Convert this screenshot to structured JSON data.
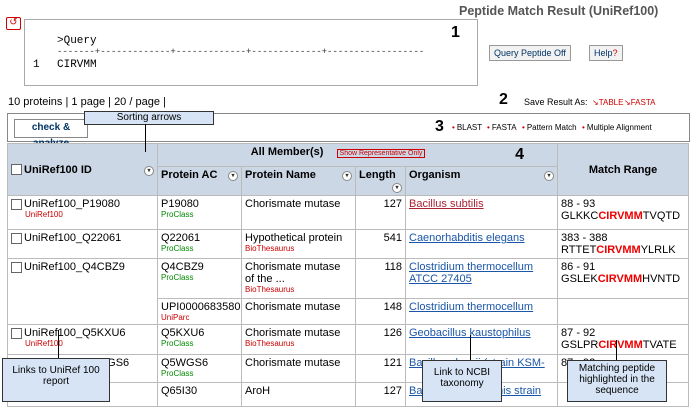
{
  "header": {
    "title": "Peptide Match Result (UniRef100)",
    "back_label": "↺"
  },
  "query": {
    "line1": ">Query",
    "ruler": "-------+-------------+-------------+-------------+------------------",
    "seq_num": "1",
    "seq": "CIRVMM"
  },
  "buttons": {
    "query_peptide_off": "Query Peptide Off",
    "help": "Help",
    "help_q": "?"
  },
  "summary": {
    "proteins": "10 proteins",
    "pages": "1 page",
    "per_page": "20 / page"
  },
  "save": {
    "label": "Save Result As:",
    "table": "TABLE",
    "fasta": "FASTA"
  },
  "toolbar": {
    "check_analyze": "check & analyze",
    "blast": "BLAST",
    "fasta": "FASTA",
    "pattern": "Pattern Match",
    "multi": "Multiple Alignment"
  },
  "markers": {
    "n1": "1",
    "n2": "2",
    "n3": "3",
    "n4": "4"
  },
  "table": {
    "col_id": "UniRef100 ID",
    "col_all": "All Member(s)",
    "show_rep": "Show Representative Only",
    "col_ac": "Protein AC",
    "col_name": "Protein Name",
    "col_len": "Length",
    "col_org": "Organism",
    "col_range": "Match Range",
    "rows": [
      {
        "id": "UniRef100_P19080",
        "id_sub": "UniRef100",
        "ac": "P19080",
        "ac_sub": "ProClass",
        "name": "Chorismate mutase",
        "name_sub": "",
        "len": "127",
        "org": "Bacillus subtilis",
        "range": "88 - 93",
        "pre": "GLKKC",
        "hit": "CIRVMM",
        "post": "TVQTD"
      },
      {
        "id": "UniRef100_Q22061",
        "id_sub": "UniRef100",
        "ac": "Q22061",
        "ac_sub": "ProClass",
        "name": "Hypothetical protein",
        "name_sub": "BioThesaurus",
        "len": "541",
        "org": "Caenorhabditis elegans",
        "range": "383 - 388",
        "pre": "RTTET",
        "hit": "CIRVMM",
        "post": "YLRLK"
      },
      {
        "id": "UniRef100_Q4CBZ9",
        "id_sub": "",
        "ac": "Q4CBZ9",
        "ac_sub": "ProClass",
        "name": "Chorismate mutase of the ...",
        "name_sub": "BioThesaurus",
        "len": "118",
        "org": "Clostridium thermocellum ATCC 27405",
        "range": "86 - 91",
        "pre": "GSLEK",
        "hit": "CIRVMM",
        "post": "HVNTD"
      },
      {
        "id": "",
        "id_sub": "",
        "ac": "UPI0000683580",
        "ac_sub": "UniParc",
        "name": "Chorismate mutase",
        "name_sub": "",
        "len": "148",
        "org": "Clostridium thermocellum",
        "range": "",
        "pre": "",
        "hit": "",
        "post": ""
      },
      {
        "id": "UniRef100_Q5KXU6",
        "id_sub": "UniRef100",
        "ac": "Q5KXU6",
        "ac_sub": "ProClass",
        "name": "Chorismate mutase",
        "name_sub": "BioThesaurus",
        "len": "126",
        "org": "Geobacillus kaustophilus",
        "range": "87 - 92",
        "pre": "GSLPR",
        "hit": "CIRVMM",
        "post": "TVATE"
      },
      {
        "id": "UniRef100_Q5WGS6",
        "id_sub": "",
        "ac": "Q5WGS6",
        "ac_sub": "ProClass",
        "name": "Chorismate mutase",
        "name_sub": "",
        "len": "121",
        "org": "Bacillus clausii (strain KSM-",
        "range": "87 - 92",
        "pre": "",
        "hit": "",
        "post": ""
      },
      {
        "id": "",
        "id_sub": "",
        "ac": "Q65I30",
        "ac_sub": "",
        "name": "AroH",
        "name_sub": "",
        "len": "127",
        "org": "Bacillus licheniformis strain",
        "range": "",
        "pre": "",
        "hit": "",
        "post": ""
      }
    ]
  },
  "callouts": {
    "sorting": "Sorting arrows",
    "links_uniref": "Links to UniRef 100 report",
    "link_ncbi": "Link to NCBI taxonomy",
    "matching": "Matching peptide highlighted in the sequence"
  }
}
